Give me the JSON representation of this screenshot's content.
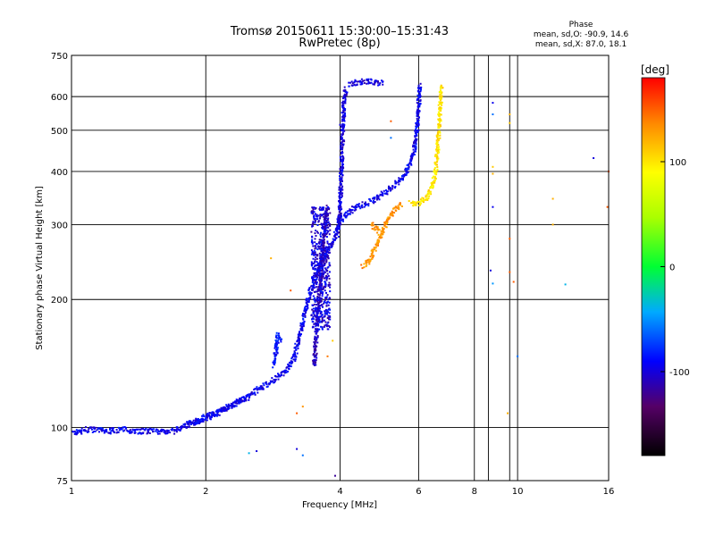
{
  "chart_data": {
    "type": "scatter",
    "title": "Tromsø 20150611 15:30:00–15:31:43",
    "subtitle": "RwPretec (8p)",
    "xlabel": "Frequency [MHz]",
    "ylabel": "Stationary phase Virtual Height [km]",
    "x_scale": "log",
    "y_scale": "log",
    "xlim": [
      1,
      16
    ],
    "ylim": [
      75,
      750
    ],
    "x_ticks": [
      "1",
      "2",
      "4",
      "6",
      "8",
      "10",
      "16"
    ],
    "x_tick_values": [
      1,
      2,
      4,
      6,
      8,
      10,
      16
    ],
    "y_ticks": [
      "75",
      "100",
      "200",
      "300",
      "400",
      "500",
      "600",
      "750"
    ],
    "y_tick_values": [
      75,
      100,
      200,
      300,
      400,
      500,
      600,
      750
    ],
    "extra_vlines": [
      8.6,
      9.6
    ],
    "grid": true,
    "stats": {
      "heading": "Phase",
      "line_o": "mean, sd,O: -90.9, 14.6",
      "line_x": "mean, sd,X: 87.0, 18.1"
    },
    "colorbar": {
      "label": "[deg]",
      "range": [
        -180,
        180
      ],
      "ticks": [
        "100",
        "0",
        "-100"
      ],
      "tick_values": [
        100,
        0,
        -100
      ]
    },
    "traces": [
      {
        "name": "",
        "phase": -95,
        "points": [
          [
            1.0,
            97
          ],
          [
            1.1,
            99
          ],
          [
            1.2,
            98
          ],
          [
            1.3,
            99
          ],
          [
            1.4,
            98
          ],
          [
            1.5,
            98
          ],
          [
            1.6,
            98
          ],
          [
            1.7,
            98
          ],
          [
            1.8,
            101
          ],
          [
            1.9,
            103
          ],
          [
            2.0,
            105
          ],
          [
            2.2,
            110
          ],
          [
            2.4,
            116
          ],
          [
            2.6,
            122
          ],
          [
            2.8,
            128
          ],
          [
            3.0,
            135
          ],
          [
            3.15,
            145
          ],
          [
            3.25,
            165
          ],
          [
            3.35,
            190
          ],
          [
            3.45,
            215
          ],
          [
            3.6,
            240
          ],
          [
            3.75,
            260
          ],
          [
            3.85,
            275
          ],
          [
            3.95,
            285
          ]
        ]
      },
      {
        "name": "",
        "phase": -100,
        "points": [
          [
            3.95,
            290
          ],
          [
            4.0,
            320
          ],
          [
            4.02,
            380
          ],
          [
            4.05,
            470
          ],
          [
            4.08,
            580
          ],
          [
            4.12,
            630
          ]
        ]
      },
      {
        "name": "",
        "phase": -100,
        "points": [
          [
            4.2,
            640
          ],
          [
            4.4,
            650
          ],
          [
            4.6,
            650
          ],
          [
            4.8,
            650
          ],
          [
            5.0,
            645
          ]
        ]
      },
      {
        "name": "",
        "phase": -95,
        "points": [
          [
            3.9,
            285
          ],
          [
            4.0,
            305
          ],
          [
            4.15,
            320
          ],
          [
            4.35,
            330
          ],
          [
            4.55,
            335
          ],
          [
            4.8,
            345
          ],
          [
            5.0,
            355
          ],
          [
            5.3,
            370
          ],
          [
            5.6,
            395
          ],
          [
            5.85,
            440
          ],
          [
            5.95,
            500
          ],
          [
            6.0,
            560
          ],
          [
            6.03,
            640
          ]
        ]
      },
      {
        "name": "",
        "phase": -110,
        "points": [
          [
            3.5,
            140
          ],
          [
            3.55,
            170
          ],
          [
            3.6,
            210
          ],
          [
            3.65,
            260
          ],
          [
            3.7,
            300
          ],
          [
            3.75,
            330
          ]
        ]
      },
      {
        "name": "",
        "phase": -85,
        "points": [
          [
            2.85,
            140
          ],
          [
            2.9,
            165
          ],
          [
            2.95,
            160
          ]
        ]
      },
      {
        "name": "",
        "phase": -95,
        "points": [
          [
            1.8,
            101
          ],
          [
            2.1,
            108
          ],
          [
            2.5,
            118
          ]
        ]
      },
      {
        "name": "",
        "phase": 100,
        "points": [
          [
            5.75,
            340
          ],
          [
            5.9,
            335
          ],
          [
            6.1,
            340
          ],
          [
            6.3,
            350
          ],
          [
            6.45,
            370
          ],
          [
            6.55,
            400
          ],
          [
            6.62,
            450
          ],
          [
            6.68,
            520
          ],
          [
            6.72,
            580
          ],
          [
            6.75,
            640
          ]
        ]
      },
      {
        "name": "",
        "phase": 130,
        "points": [
          [
            4.5,
            240
          ],
          [
            4.65,
            245
          ],
          [
            4.8,
            265
          ],
          [
            4.95,
            285
          ],
          [
            5.1,
            305
          ],
          [
            5.3,
            325
          ],
          [
            5.5,
            335
          ]
        ]
      },
      {
        "name": "",
        "phase": 130,
        "points": [
          [
            4.7,
            300
          ],
          [
            4.8,
            295
          ],
          [
            4.9,
            290
          ]
        ]
      }
    ],
    "cloud": {
      "x_range": [
        3.45,
        3.8
      ],
      "y_range": [
        170,
        330
      ],
      "phase": -100
    },
    "scatter_points": [
      {
        "x": 8.8,
        "y": 580,
        "phase": -95
      },
      {
        "x": 8.8,
        "y": 545,
        "phase": -60
      },
      {
        "x": 9.6,
        "y": 545,
        "phase": 120
      },
      {
        "x": 9.6,
        "y": 520,
        "phase": 110
      },
      {
        "x": 8.8,
        "y": 410,
        "phase": 110
      },
      {
        "x": 8.8,
        "y": 395,
        "phase": 120
      },
      {
        "x": 8.8,
        "y": 330,
        "phase": -95
      },
      {
        "x": 9.6,
        "y": 278,
        "phase": 150
      },
      {
        "x": 8.7,
        "y": 234,
        "phase": -100
      },
      {
        "x": 8.8,
        "y": 218,
        "phase": -50
      },
      {
        "x": 9.6,
        "y": 232,
        "phase": 150
      },
      {
        "x": 9.8,
        "y": 220,
        "phase": 150
      },
      {
        "x": 12.8,
        "y": 217,
        "phase": -40
      },
      {
        "x": 14.8,
        "y": 430,
        "phase": -100
      },
      {
        "x": 16.0,
        "y": 400,
        "phase": 150
      },
      {
        "x": 15.9,
        "y": 330,
        "phase": 150
      },
      {
        "x": 12.0,
        "y": 300,
        "phase": 120
      },
      {
        "x": 12.0,
        "y": 345,
        "phase": 120
      },
      {
        "x": 9.5,
        "y": 108,
        "phase": 120
      },
      {
        "x": 10.0,
        "y": 147,
        "phase": -60
      },
      {
        "x": 5.2,
        "y": 525,
        "phase": 150
      },
      {
        "x": 5.2,
        "y": 480,
        "phase": -60
      },
      {
        "x": 4.0,
        "y": 515,
        "phase": -100
      },
      {
        "x": 2.6,
        "y": 88,
        "phase": -100
      },
      {
        "x": 2.5,
        "y": 87,
        "phase": -40
      },
      {
        "x": 3.2,
        "y": 89,
        "phase": -100
      },
      {
        "x": 3.9,
        "y": 77,
        "phase": -120
      },
      {
        "x": 3.3,
        "y": 86,
        "phase": -60
      },
      {
        "x": 3.3,
        "y": 112,
        "phase": 130
      },
      {
        "x": 3.2,
        "y": 108,
        "phase": 150
      },
      {
        "x": 3.75,
        "y": 147,
        "phase": 140
      },
      {
        "x": 3.85,
        "y": 160,
        "phase": 110
      },
      {
        "x": 2.8,
        "y": 250,
        "phase": 120
      },
      {
        "x": 3.1,
        "y": 210,
        "phase": 150
      }
    ]
  }
}
